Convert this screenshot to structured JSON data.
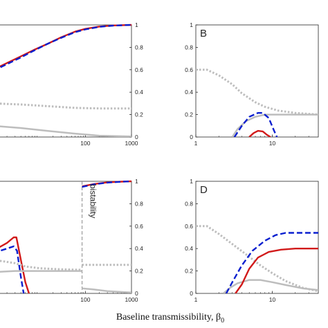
{
  "figure": {
    "xlabel": "Baseline transmissibility, β",
    "xlabel_sub": "0"
  },
  "colors": {
    "red": "#d11a1a",
    "blue": "#0a1fcf",
    "gray": "#bdbdbd",
    "axis": "#262626",
    "bistability_line": "#8a8a8a"
  },
  "chart_data": [
    {
      "id": "A",
      "letter": "",
      "type": "line",
      "xscale": "log",
      "xticks": [
        {
          "v": 100,
          "label": "100"
        },
        {
          "v": 1000,
          "label": "1000"
        }
      ],
      "yticks": [
        {
          "v": 0,
          "label": "0"
        },
        {
          "v": 0.2,
          "label": "0.2"
        },
        {
          "v": 0.4,
          "label": "0.4"
        },
        {
          "v": 0.6,
          "label": "0.6"
        },
        {
          "v": 0.8,
          "label": "0.8"
        },
        {
          "v": 1,
          "label": "1"
        }
      ],
      "xlim": [
        1,
        1000
      ],
      "ylim": [
        0,
        1
      ],
      "yaxis_side": "right",
      "series": [
        {
          "color": "red",
          "style": "solid",
          "width": 2.4,
          "points": [
            [
              1,
              0.6
            ],
            [
              2,
              0.66
            ],
            [
              4,
              0.72
            ],
            [
              8,
              0.78
            ],
            [
              15,
              0.83
            ],
            [
              30,
              0.89
            ],
            [
              60,
              0.94
            ],
            [
              100,
              0.965
            ],
            [
              200,
              0.985
            ],
            [
              400,
              0.995
            ],
            [
              1000,
              1.0
            ]
          ]
        },
        {
          "color": "blue",
          "style": "dashed",
          "width": 2.4,
          "points": [
            [
              1,
              0.59
            ],
            [
              2,
              0.65
            ],
            [
              4,
              0.71
            ],
            [
              8,
              0.775
            ],
            [
              15,
              0.83
            ],
            [
              30,
              0.885
            ],
            [
              60,
              0.935
            ],
            [
              100,
              0.96
            ],
            [
              200,
              0.983
            ],
            [
              400,
              0.994
            ],
            [
              1000,
              1.0
            ]
          ]
        },
        {
          "color": "gray",
          "style": "dotted",
          "width": 3,
          "points": [
            [
              1,
              0.3
            ],
            [
              4,
              0.29
            ],
            [
              15,
              0.275
            ],
            [
              60,
              0.26
            ],
            [
              200,
              0.255
            ],
            [
              1000,
              0.255
            ]
          ]
        },
        {
          "color": "gray",
          "style": "solid",
          "width": 2.5,
          "points": [
            [
              1,
              0.1
            ],
            [
              4,
              0.08
            ],
            [
              15,
              0.055
            ],
            [
              60,
              0.03
            ],
            [
              200,
              0.012
            ],
            [
              1000,
              0.005
            ]
          ]
        }
      ]
    },
    {
      "id": "B",
      "letter": "B",
      "type": "line",
      "xscale": "log",
      "xticks": [
        {
          "v": 1,
          "label": "1"
        },
        {
          "v": 10,
          "label": "10"
        }
      ],
      "yticks": [
        {
          "v": 0,
          "label": "0"
        },
        {
          "v": 0.2,
          "label": "0.2"
        },
        {
          "v": 0.4,
          "label": "0.4"
        },
        {
          "v": 0.6,
          "label": "0.6"
        },
        {
          "v": 0.8,
          "label": "0.8"
        },
        {
          "v": 1,
          "label": "1"
        }
      ],
      "xlim": [
        1,
        40
      ],
      "ylim": [
        0,
        1
      ],
      "yaxis_side": "left",
      "series": [
        {
          "color": "gray",
          "style": "dotted",
          "width": 3,
          "points": [
            [
              1,
              0.6
            ],
            [
              1.4,
              0.6
            ],
            [
              2,
              0.55
            ],
            [
              3,
              0.47
            ],
            [
              4,
              0.39
            ],
            [
              6,
              0.31
            ],
            [
              8,
              0.27
            ],
            [
              12,
              0.235
            ],
            [
              20,
              0.215
            ],
            [
              40,
              0.2
            ]
          ]
        },
        {
          "color": "gray",
          "style": "solid",
          "width": 2.5,
          "points": [
            [
              3,
              0.0
            ],
            [
              3.5,
              0.07
            ],
            [
              4.5,
              0.14
            ],
            [
              6,
              0.18
            ],
            [
              8,
              0.2
            ],
            [
              15,
              0.2
            ],
            [
              40,
              0.2
            ]
          ]
        },
        {
          "color": "blue",
          "style": "dashed",
          "width": 2.4,
          "points": [
            [
              3.2,
              0.0
            ],
            [
              4,
              0.1
            ],
            [
              5,
              0.18
            ],
            [
              6.5,
              0.215
            ],
            [
              7.5,
              0.215
            ],
            [
              9,
              0.17
            ],
            [
              10.5,
              0.06
            ],
            [
              11.5,
              0.0
            ]
          ]
        },
        {
          "color": "red",
          "style": "solid",
          "width": 2.4,
          "points": [
            [
              5,
              0.0
            ],
            [
              5.7,
              0.035
            ],
            [
              6.5,
              0.055
            ],
            [
              7.5,
              0.05
            ],
            [
              8.5,
              0.02
            ],
            [
              9.5,
              0.0
            ]
          ]
        }
      ]
    },
    {
      "id": "C",
      "letter": "",
      "type": "line",
      "xscale": "log",
      "xticks": [
        {
          "v": 100,
          "label": "100"
        },
        {
          "v": 1000,
          "label": "1000"
        }
      ],
      "yticks": [
        {
          "v": 0,
          "label": "0"
        },
        {
          "v": 0.2,
          "label": "0.2"
        },
        {
          "v": 0.4,
          "label": "0.4"
        },
        {
          "v": 0.6,
          "label": "0.6"
        },
        {
          "v": 0.8,
          "label": "0.8"
        },
        {
          "v": 1,
          "label": "1"
        }
      ],
      "xlim": [
        1,
        1000
      ],
      "ylim": [
        0,
        1
      ],
      "yaxis_side": "right",
      "annotation": {
        "x": 85,
        "text": "bistability"
      },
      "series": [
        {
          "color": "red",
          "style": "solid",
          "width": 2.4,
          "points": [
            [
              1,
              0.38
            ],
            [
              2,
              0.45
            ],
            [
              2.8,
              0.5
            ],
            [
              3.2,
              0.5
            ],
            [
              4,
              0.3
            ],
            [
              5,
              0.1
            ],
            [
              6,
              0.0
            ]
          ]
        },
        {
          "color": "blue",
          "style": "dashed",
          "width": 2.4,
          "points": [
            [
              1,
              0.36
            ],
            [
              2,
              0.4
            ],
            [
              2.8,
              0.42
            ],
            [
              3.3,
              0.38
            ],
            [
              4,
              0.15
            ],
            [
              4.6,
              0.0
            ]
          ]
        },
        {
          "color": "gray",
          "style": "dotted",
          "width": 3,
          "points": [
            [
              1,
              0.3
            ],
            [
              3,
              0.27
            ],
            [
              5,
              0.24
            ],
            [
              10,
              0.225
            ],
            [
              30,
              0.215
            ],
            [
              85,
              0.21
            ]
          ]
        },
        {
          "color": "gray",
          "style": "solid",
          "width": 2.5,
          "points": [
            [
              1,
              0.19
            ],
            [
              3,
              0.2
            ],
            [
              10,
              0.2
            ],
            [
              85,
              0.2
            ]
          ]
        },
        {
          "color": "gray",
          "style": "dotted",
          "width": 3,
          "points": [
            [
              85,
              0.255
            ],
            [
              200,
              0.255
            ],
            [
              1000,
              0.255
            ]
          ]
        },
        {
          "color": "gray",
          "style": "solid",
          "width": 2.5,
          "points": [
            [
              85,
              0.045
            ],
            [
              150,
              0.035
            ],
            [
              300,
              0.02
            ],
            [
              1000,
              0.008
            ]
          ]
        },
        {
          "color": "red",
          "style": "solid",
          "width": 2.4,
          "points": [
            [
              85,
              0.955
            ],
            [
              150,
              0.975
            ],
            [
              300,
              0.99
            ],
            [
              600,
              0.997
            ],
            [
              1000,
              1.0
            ]
          ]
        },
        {
          "color": "blue",
          "style": "dashed",
          "width": 2.4,
          "points": [
            [
              85,
              0.95
            ],
            [
              150,
              0.972
            ],
            [
              300,
              0.988
            ],
            [
              600,
              0.996
            ],
            [
              1000,
              1.0
            ]
          ]
        }
      ]
    },
    {
      "id": "D",
      "letter": "D",
      "type": "line",
      "xscale": "log",
      "xticks": [
        {
          "v": 1,
          "label": "1"
        },
        {
          "v": 10,
          "label": "10"
        }
      ],
      "yticks": [
        {
          "v": 0,
          "label": "0"
        },
        {
          "v": 0.2,
          "label": "0.2"
        },
        {
          "v": 0.4,
          "label": "0.4"
        },
        {
          "v": 0.6,
          "label": "0.6"
        },
        {
          "v": 0.8,
          "label": "0.8"
        },
        {
          "v": 1,
          "label": "1"
        }
      ],
      "xlim": [
        1,
        40
      ],
      "ylim": [
        0,
        1
      ],
      "yaxis_side": "left",
      "series": [
        {
          "color": "gray",
          "style": "dotted",
          "width": 3,
          "points": [
            [
              1,
              0.6
            ],
            [
              1.4,
              0.6
            ],
            [
              2,
              0.53
            ],
            [
              3,
              0.44
            ],
            [
              4.5,
              0.35
            ],
            [
              7,
              0.25
            ],
            [
              10,
              0.18
            ],
            [
              15,
              0.11
            ],
            [
              25,
              0.05
            ],
            [
              40,
              0.02
            ]
          ]
        },
        {
          "color": "gray",
          "style": "solid",
          "width": 2.5,
          "points": [
            [
              2.3,
              0.0
            ],
            [
              2.8,
              0.05
            ],
            [
              3.5,
              0.09
            ],
            [
              5,
              0.12
            ],
            [
              7,
              0.12
            ],
            [
              10,
              0.1
            ],
            [
              15,
              0.075
            ],
            [
              25,
              0.045
            ],
            [
              40,
              0.03
            ]
          ]
        },
        {
          "color": "blue",
          "style": "dashed",
          "width": 2.4,
          "points": [
            [
              2.5,
              0.0
            ],
            [
              3,
              0.1
            ],
            [
              4,
              0.25
            ],
            [
              5.5,
              0.38
            ],
            [
              8,
              0.47
            ],
            [
              11,
              0.52
            ],
            [
              15,
              0.54
            ],
            [
              40,
              0.54
            ]
          ]
        },
        {
          "color": "red",
          "style": "solid",
          "width": 2.4,
          "points": [
            [
              3.3,
              0.0
            ],
            [
              4,
              0.08
            ],
            [
              5,
              0.22
            ],
            [
              6.5,
              0.32
            ],
            [
              9,
              0.37
            ],
            [
              13,
              0.39
            ],
            [
              20,
              0.4
            ],
            [
              40,
              0.4
            ]
          ]
        }
      ]
    }
  ]
}
